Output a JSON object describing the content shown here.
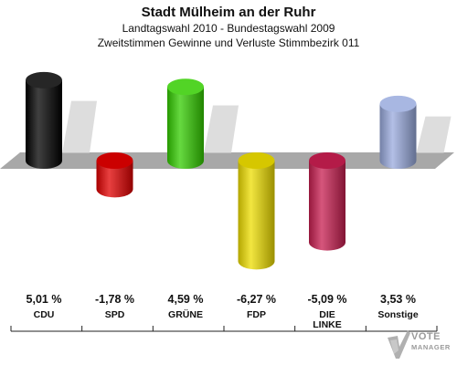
{
  "header": {
    "title": "Stadt Mülheim an der Ruhr",
    "subtitle_1": "Landtagswahl 2010 - Bundestagswahl 2009",
    "subtitle_2": "Zweitstimmen Gewinne und Verluste Stimmbezirk 011"
  },
  "chart_data": {
    "type": "bar",
    "title": "Stadt Mülheim an der Ruhr",
    "subtitle": "Landtagswahl 2010 - Bundestagswahl 2009 / Zweitstimmen Gewinne und Verluste Stimmbezirk 011",
    "categories": [
      "CDU",
      "SPD",
      "GRÜNE",
      "FDP",
      "DIE LINKE",
      "Sonstige"
    ],
    "category_lines": [
      [
        "CDU"
      ],
      [
        "SPD"
      ],
      [
        "GRÜNE"
      ],
      [
        "FDP"
      ],
      [
        "DIE",
        "LINKE"
      ],
      [
        "Sonstige"
      ]
    ],
    "values": [
      5.01,
      -1.78,
      4.59,
      -6.27,
      -5.09,
      3.53
    ],
    "value_labels": [
      "5,01 %",
      "-1,78 %",
      "4,59 %",
      "-6,27 %",
      "-5,09 %",
      "3,53 %"
    ],
    "colors": [
      "#000000",
      "#e10000",
      "#33cc00",
      "#eedd00",
      "#c81e50",
      "#99aadd"
    ],
    "grid": false,
    "legend": "none"
  },
  "logo": {
    "line1": "VOTE",
    "line2": "MANAGER"
  }
}
